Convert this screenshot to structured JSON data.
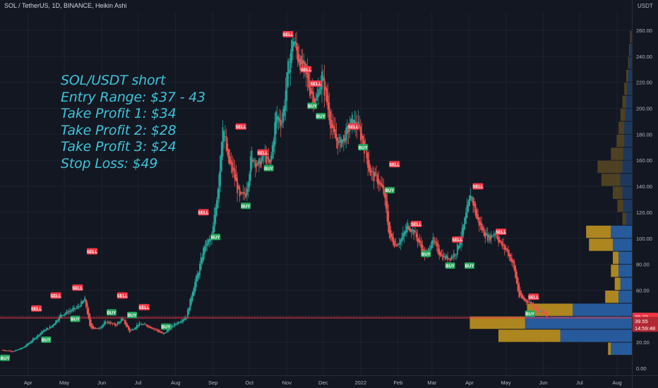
{
  "header": {
    "symbol_title": "SOL / TetherUS, 1D, BINANCE, Heikin Ashi",
    "currency_label": "USDT"
  },
  "annotation_lines": [
    "SOL/USDT short",
    "Entry Range: $37 - 43",
    "Take Profit 1: $34",
    "Take Profit 2: $28",
    "Take Profit 3: $24",
    "Stop Loss: $49"
  ],
  "colors": {
    "background": "#131722",
    "grid": "#1e222d",
    "up_candle": "#26a69a",
    "down_candle": "#ef5350",
    "buy_label": "#26a65b",
    "sell_label": "#f23645",
    "text": "#b2b5be",
    "annotation": "#3fc2d6",
    "vp_volume": "#c99a1f",
    "vp_value": "#2962a8",
    "price_line": "#f23645"
  },
  "chart_data": {
    "type": "candlestick",
    "title": "SOL / TetherUS, 1D, BINANCE, Heikin Ashi",
    "y_axis": {
      "unit": "USDT",
      "range": [
        -5,
        265
      ],
      "ticks": [
        "0.00",
        "20.00",
        "40.00",
        "60.00",
        "80.00",
        "100.00",
        "120.00",
        "140.00",
        "160.00",
        "180.00",
        "200.00",
        "220.00",
        "240.00",
        "260.00"
      ]
    },
    "x_axis": {
      "range": [
        "2021-03-10",
        "2022-08-15"
      ],
      "ticks": [
        {
          "label": "Apr",
          "date": "2021-04-01"
        },
        {
          "label": "May",
          "date": "2021-05-01"
        },
        {
          "label": "Jun",
          "date": "2021-06-01"
        },
        {
          "label": "Jul",
          "date": "2021-07-01"
        },
        {
          "label": "Aug",
          "date": "2021-08-01"
        },
        {
          "label": "Sep",
          "date": "2021-09-01"
        },
        {
          "label": "Oct",
          "date": "2021-10-01"
        },
        {
          "label": "Nov",
          "date": "2021-11-01"
        },
        {
          "label": "Dec",
          "date": "2021-12-01"
        },
        {
          "label": "2022",
          "date": "2022-01-01"
        },
        {
          "label": "Feb",
          "date": "2022-02-01"
        },
        {
          "label": "Mar",
          "date": "2022-03-01"
        },
        {
          "label": "Apr",
          "date": "2022-04-01"
        },
        {
          "label": "May",
          "date": "2022-05-01"
        },
        {
          "label": "Jun",
          "date": "2022-06-01"
        },
        {
          "label": "Jul",
          "date": "2022-07-01"
        },
        {
          "label": "Aug",
          "date": "2022-08-01"
        }
      ]
    },
    "close_path": [
      [
        "2021-03-10",
        14
      ],
      [
        "2021-03-20",
        13
      ],
      [
        "2021-03-28",
        16
      ],
      [
        "2021-04-05",
        22
      ],
      [
        "2021-04-12",
        28
      ],
      [
        "2021-04-20",
        32
      ],
      [
        "2021-04-28",
        41
      ],
      [
        "2021-05-05",
        44
      ],
      [
        "2021-05-12",
        47
      ],
      [
        "2021-05-18",
        53
      ],
      [
        "2021-05-22",
        32
      ],
      [
        "2021-05-28",
        30
      ],
      [
        "2021-06-05",
        36
      ],
      [
        "2021-06-12",
        33
      ],
      [
        "2021-06-18",
        38
      ],
      [
        "2021-06-24",
        28
      ],
      [
        "2021-07-01",
        34
      ],
      [
        "2021-07-08",
        33
      ],
      [
        "2021-07-15",
        30
      ],
      [
        "2021-07-22",
        26
      ],
      [
        "2021-07-28",
        32
      ],
      [
        "2021-08-04",
        36
      ],
      [
        "2021-08-10",
        40
      ],
      [
        "2021-08-15",
        60
      ],
      [
        "2021-08-20",
        75
      ],
      [
        "2021-08-25",
        95
      ],
      [
        "2021-08-31",
        100
      ],
      [
        "2021-09-05",
        140
      ],
      [
        "2021-09-09",
        190
      ],
      [
        "2021-09-13",
        160
      ],
      [
        "2021-09-18",
        150
      ],
      [
        "2021-09-23",
        130
      ],
      [
        "2021-09-28",
        135
      ],
      [
        "2021-10-03",
        165
      ],
      [
        "2021-10-08",
        155
      ],
      [
        "2021-10-13",
        165
      ],
      [
        "2021-10-18",
        155
      ],
      [
        "2021-10-23",
        195
      ],
      [
        "2021-10-28",
        190
      ],
      [
        "2021-11-02",
        230
      ],
      [
        "2021-11-06",
        255
      ],
      [
        "2021-11-10",
        240
      ],
      [
        "2021-11-15",
        230
      ],
      [
        "2021-11-20",
        215
      ],
      [
        "2021-11-25",
        205
      ],
      [
        "2021-11-30",
        225
      ],
      [
        "2021-12-04",
        205
      ],
      [
        "2021-12-09",
        180
      ],
      [
        "2021-12-14",
        172
      ],
      [
        "2021-12-20",
        180
      ],
      [
        "2021-12-25",
        190
      ],
      [
        "2021-12-30",
        185
      ],
      [
        "2022-01-04",
        170
      ],
      [
        "2022-01-09",
        150
      ],
      [
        "2022-01-15",
        145
      ],
      [
        "2022-01-20",
        135
      ],
      [
        "2022-01-25",
        100
      ],
      [
        "2022-01-30",
        95
      ],
      [
        "2022-02-04",
        100
      ],
      [
        "2022-02-09",
        110
      ],
      [
        "2022-02-14",
        105
      ],
      [
        "2022-02-19",
        95
      ],
      [
        "2022-02-24",
        85
      ],
      [
        "2022-03-01",
        100
      ],
      [
        "2022-03-06",
        90
      ],
      [
        "2022-03-11",
        85
      ],
      [
        "2022-03-16",
        85
      ],
      [
        "2022-03-21",
        90
      ],
      [
        "2022-03-26",
        105
      ],
      [
        "2022-04-02",
        135
      ],
      [
        "2022-04-07",
        115
      ],
      [
        "2022-04-12",
        105
      ],
      [
        "2022-04-17",
        100
      ],
      [
        "2022-04-22",
        105
      ],
      [
        "2022-04-27",
        95
      ],
      [
        "2022-05-02",
        90
      ],
      [
        "2022-05-07",
        80
      ],
      [
        "2022-05-12",
        55
      ],
      [
        "2022-05-17",
        52
      ],
      [
        "2022-05-22",
        50
      ],
      [
        "2022-05-27",
        45
      ],
      [
        "2022-06-01",
        43
      ],
      [
        "2022-06-04",
        40
      ]
    ],
    "signals": [
      {
        "type": "BUY",
        "date": "2021-03-13",
        "price": 8
      },
      {
        "type": "SELL",
        "date": "2021-04-08",
        "price": 46
      },
      {
        "type": "BUY",
        "date": "2021-04-16",
        "price": 22
      },
      {
        "type": "SELL",
        "date": "2021-04-24",
        "price": 56
      },
      {
        "type": "BUY",
        "date": "2021-05-10",
        "price": 38
      },
      {
        "type": "SELL",
        "date": "2021-05-12",
        "price": 62
      },
      {
        "type": "SELL",
        "date": "2021-05-24",
        "price": 90
      },
      {
        "type": "BUY",
        "date": "2021-06-09",
        "price": 43
      },
      {
        "type": "SELL",
        "date": "2021-06-18",
        "price": 56
      },
      {
        "type": "BUY",
        "date": "2021-06-26",
        "price": 41
      },
      {
        "type": "SELL",
        "date": "2021-07-06",
        "price": 47
      },
      {
        "type": "BUY",
        "date": "2021-07-24",
        "price": 32
      },
      {
        "type": "SELL",
        "date": "2021-08-24",
        "price": 120
      },
      {
        "type": "BUY",
        "date": "2021-09-03",
        "price": 101
      },
      {
        "type": "SELL",
        "date": "2021-09-24",
        "price": 186
      },
      {
        "type": "BUY",
        "date": "2021-09-28",
        "price": 125
      },
      {
        "type": "SELL",
        "date": "2021-10-12",
        "price": 166
      },
      {
        "type": "BUY",
        "date": "2021-10-17",
        "price": 154
      },
      {
        "type": "SELL",
        "date": "2021-11-02",
        "price": 257
      },
      {
        "type": "SELL",
        "date": "2021-11-17",
        "price": 230
      },
      {
        "type": "BUY",
        "date": "2021-11-22",
        "price": 202
      },
      {
        "type": "SELL",
        "date": "2021-11-25",
        "price": 219
      },
      {
        "type": "BUY",
        "date": "2021-11-29",
        "price": 194
      },
      {
        "type": "SELL",
        "date": "2021-12-26",
        "price": 186
      },
      {
        "type": "BUY",
        "date": "2022-01-03",
        "price": 170
      },
      {
        "type": "SELL",
        "date": "2022-01-29",
        "price": 157
      },
      {
        "type": "BUY",
        "date": "2022-01-25",
        "price": 137
      },
      {
        "type": "SELL",
        "date": "2022-02-16",
        "price": 111
      },
      {
        "type": "BUY",
        "date": "2022-02-24",
        "price": 88
      },
      {
        "type": "SELL",
        "date": "2022-03-22",
        "price": 99
      },
      {
        "type": "BUY",
        "date": "2022-03-16",
        "price": 79
      },
      {
        "type": "BUY",
        "date": "2022-04-01",
        "price": 79
      },
      {
        "type": "SELL",
        "date": "2022-04-08",
        "price": 140
      },
      {
        "type": "SELL",
        "date": "2022-04-27",
        "price": 105
      },
      {
        "type": "BUY",
        "date": "2022-05-21",
        "price": 42
      },
      {
        "type": "SELL",
        "date": "2022-05-24",
        "price": 55
      }
    ],
    "volume_profile": [
      {
        "price": 15,
        "volume": 25,
        "value": 22
      },
      {
        "price": 25,
        "volume": 140,
        "value": 75
      },
      {
        "price": 35,
        "volume": 170,
        "value": 112
      },
      {
        "price": 45,
        "volume": 110,
        "value": 62
      },
      {
        "price": 55,
        "volume": 28,
        "value": 14
      },
      {
        "price": 65,
        "volume": 18,
        "value": 12
      },
      {
        "price": 75,
        "volume": 22,
        "value": 14
      },
      {
        "price": 85,
        "volume": 20,
        "value": 14
      },
      {
        "price": 95,
        "volume": 45,
        "value": 20
      },
      {
        "price": 105,
        "volume": 48,
        "value": 22
      },
      {
        "price": 115,
        "volume": 10,
        "value": 6
      },
      {
        "price": 125,
        "volume": 15,
        "value": 9
      },
      {
        "price": 135,
        "volume": 20,
        "value": 10
      },
      {
        "price": 145,
        "volume": 32,
        "value": 12
      },
      {
        "price": 155,
        "volume": 36,
        "value": 10
      },
      {
        "price": 165,
        "volume": 22,
        "value": 9
      },
      {
        "price": 175,
        "volume": 16,
        "value": 8
      },
      {
        "price": 185,
        "volume": 14,
        "value": 8
      },
      {
        "price": 195,
        "volume": 12,
        "value": 7
      },
      {
        "price": 205,
        "volume": 10,
        "value": 6
      },
      {
        "price": 215,
        "volume": 8,
        "value": 5
      },
      {
        "price": 225,
        "volume": 6,
        "value": 4
      },
      {
        "price": 235,
        "volume": 4,
        "value": 3
      },
      {
        "price": 245,
        "volume": 3,
        "value": 2
      },
      {
        "price": 255,
        "volume": 2,
        "value": 1
      }
    ],
    "horizontal_line": {
      "price": 38.7
    },
    "price_labels": [
      {
        "text": "39.72",
        "price": 39.72
      },
      {
        "text": "39.55",
        "price": 36.5
      },
      {
        "text": "14:59:48",
        "price": 31.0
      }
    ]
  }
}
